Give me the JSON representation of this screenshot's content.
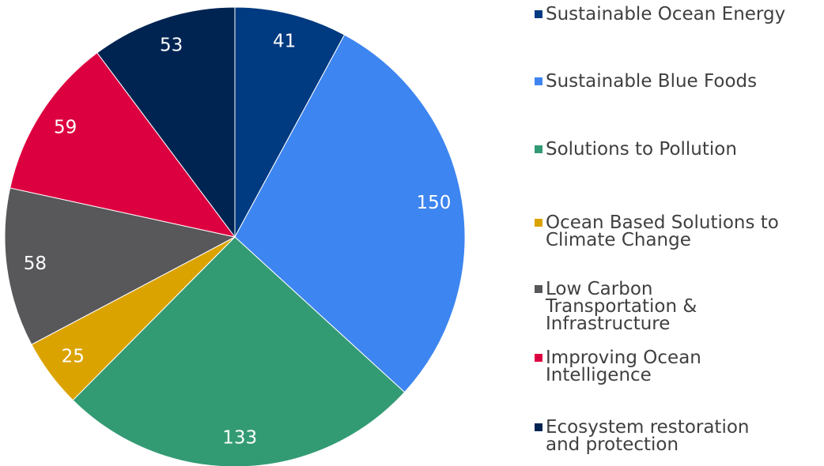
{
  "chart_data": {
    "type": "pie",
    "categories": [
      "Sustainable Ocean Energy",
      "Sustainable Blue Foods",
      "Solutions to Pollution",
      "Ocean Based Solutions to Climate Change",
      "Low Carbon Transportation & Infrastructure",
      "Improving Ocean Intelligence",
      "Ecosystem restoration and protection"
    ],
    "values": [
      41,
      150,
      133,
      25,
      58,
      59,
      53
    ],
    "colors": [
      "#003a80",
      "#3d85f0",
      "#339b74",
      "#dba300",
      "#58575a",
      "#dd0040",
      "#002452"
    ],
    "legend": "right"
  }
}
